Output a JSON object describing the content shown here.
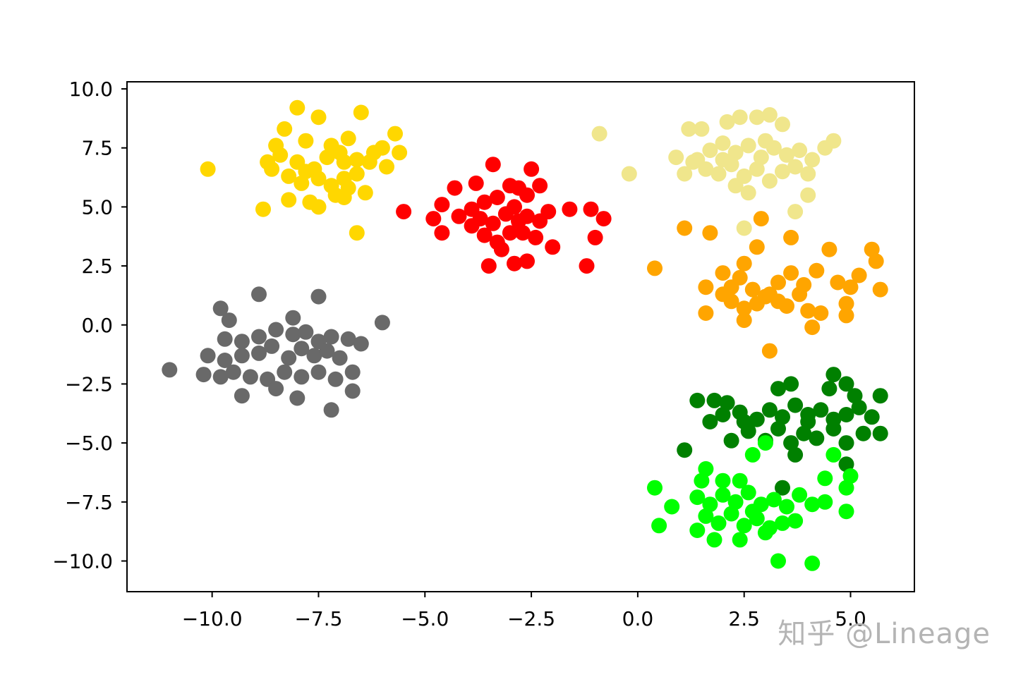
{
  "watermark": "知乎 @Lineage",
  "chart_data": {
    "type": "scatter",
    "title": "",
    "xlabel": "",
    "ylabel": "",
    "xlim": [
      -12.0,
      6.5
    ],
    "ylim": [
      -11.3,
      10.3
    ],
    "xticks": [
      -10.0,
      -7.5,
      -5.0,
      -2.5,
      0.0,
      2.5,
      5.0
    ],
    "xtick_labels": [
      "−10.0",
      "−7.5",
      "−5.0",
      "−2.5",
      "0.0",
      "2.5",
      "5.0"
    ],
    "yticks": [
      10.0,
      7.5,
      5.0,
      2.5,
      0.0,
      -2.5,
      -5.0,
      -7.5,
      -10.0
    ],
    "ytick_labels": [
      "10.0",
      "7.5",
      "5.0",
      "2.5",
      "0.0",
      "−2.5",
      "−5.0",
      "−7.5",
      "−10.0"
    ],
    "grid": false,
    "legend": "none",
    "series": [
      {
        "color": "#FFD700",
        "points": [
          [
            -10.1,
            6.6
          ],
          [
            -8.8,
            4.9
          ],
          [
            -8.0,
            9.2
          ],
          [
            -7.5,
            8.8
          ],
          [
            -6.5,
            9.0
          ],
          [
            -8.3,
            8.3
          ],
          [
            -7.8,
            7.8
          ],
          [
            -7.2,
            7.6
          ],
          [
            -6.8,
            7.9
          ],
          [
            -6.0,
            7.5
          ],
          [
            -5.7,
            8.1
          ],
          [
            -5.6,
            7.3
          ],
          [
            -8.7,
            6.9
          ],
          [
            -8.4,
            7.2
          ],
          [
            -8.0,
            6.9
          ],
          [
            -7.6,
            6.6
          ],
          [
            -7.3,
            7.1
          ],
          [
            -6.9,
            6.9
          ],
          [
            -6.6,
            7.0
          ],
          [
            -6.3,
            6.9
          ],
          [
            -5.9,
            6.7
          ],
          [
            -8.2,
            6.3
          ],
          [
            -7.9,
            6.0
          ],
          [
            -7.5,
            6.2
          ],
          [
            -7.2,
            5.9
          ],
          [
            -6.9,
            6.2
          ],
          [
            -6.6,
            6.4
          ],
          [
            -8.2,
            5.3
          ],
          [
            -7.7,
            5.2
          ],
          [
            -7.5,
            5.0
          ],
          [
            -7.1,
            5.5
          ],
          [
            -6.9,
            5.4
          ],
          [
            -6.4,
            5.6
          ],
          [
            -6.6,
            3.9
          ],
          [
            -8.5,
            7.6
          ],
          [
            -7.0,
            7.3
          ],
          [
            -6.2,
            7.3
          ],
          [
            -7.8,
            6.5
          ],
          [
            -6.8,
            5.8
          ],
          [
            -8.6,
            6.6
          ]
        ]
      },
      {
        "color": "#FF0000",
        "points": [
          [
            -5.5,
            4.8
          ],
          [
            -4.8,
            4.5
          ],
          [
            -4.6,
            5.1
          ],
          [
            -4.3,
            5.8
          ],
          [
            -4.6,
            3.9
          ],
          [
            -4.2,
            4.6
          ],
          [
            -3.9,
            4.9
          ],
          [
            -3.8,
            6.0
          ],
          [
            -3.4,
            6.8
          ],
          [
            -2.5,
            6.6
          ],
          [
            -3.6,
            5.2
          ],
          [
            -3.3,
            5.4
          ],
          [
            -3.0,
            5.9
          ],
          [
            -2.8,
            5.8
          ],
          [
            -2.6,
            5.5
          ],
          [
            -2.3,
            5.9
          ],
          [
            -3.7,
            4.5
          ],
          [
            -3.4,
            4.3
          ],
          [
            -3.1,
            4.7
          ],
          [
            -2.9,
            5.0
          ],
          [
            -2.6,
            4.6
          ],
          [
            -2.3,
            4.4
          ],
          [
            -2.1,
            4.8
          ],
          [
            -3.6,
            3.8
          ],
          [
            -3.3,
            3.5
          ],
          [
            -3.0,
            3.9
          ],
          [
            -2.7,
            3.9
          ],
          [
            -2.4,
            3.7
          ],
          [
            -3.5,
            2.5
          ],
          [
            -3.2,
            3.2
          ],
          [
            -2.9,
            2.6
          ],
          [
            -2.6,
            2.7
          ],
          [
            -2.0,
            3.3
          ],
          [
            -1.6,
            4.9
          ],
          [
            -1.1,
            4.9
          ],
          [
            -0.8,
            4.5
          ],
          [
            -1.0,
            3.7
          ],
          [
            -1.2,
            2.5
          ],
          [
            -3.9,
            4.2
          ],
          [
            -2.8,
            4.4
          ]
        ]
      },
      {
        "color": "#F0E68C",
        "points": [
          [
            -0.9,
            8.1
          ],
          [
            -0.2,
            6.4
          ],
          [
            1.2,
            8.3
          ],
          [
            1.5,
            8.3
          ],
          [
            2.1,
            8.6
          ],
          [
            2.4,
            8.8
          ],
          [
            2.8,
            8.8
          ],
          [
            3.1,
            8.9
          ],
          [
            3.4,
            8.5
          ],
          [
            4.6,
            7.8
          ],
          [
            0.9,
            7.1
          ],
          [
            1.1,
            6.4
          ],
          [
            1.4,
            7.0
          ],
          [
            1.7,
            7.4
          ],
          [
            2.0,
            7.7
          ],
          [
            2.3,
            7.3
          ],
          [
            2.6,
            7.6
          ],
          [
            2.9,
            7.1
          ],
          [
            3.2,
            7.5
          ],
          [
            3.5,
            7.2
          ],
          [
            3.8,
            7.4
          ],
          [
            4.1,
            7.0
          ],
          [
            4.4,
            7.5
          ],
          [
            1.6,
            6.6
          ],
          [
            1.9,
            6.4
          ],
          [
            2.2,
            6.8
          ],
          [
            2.5,
            6.3
          ],
          [
            2.8,
            6.6
          ],
          [
            3.1,
            6.1
          ],
          [
            3.4,
            6.5
          ],
          [
            3.7,
            6.7
          ],
          [
            4.0,
            6.4
          ],
          [
            2.3,
            5.9
          ],
          [
            2.6,
            5.6
          ],
          [
            4.0,
            5.5
          ],
          [
            3.7,
            4.8
          ],
          [
            2.5,
            4.1
          ],
          [
            1.3,
            6.9
          ],
          [
            2.0,
            7.0
          ],
          [
            3.0,
            7.8
          ]
        ]
      },
      {
        "color": "#FFA500",
        "points": [
          [
            0.4,
            2.4
          ],
          [
            1.1,
            4.1
          ],
          [
            1.7,
            3.9
          ],
          [
            2.9,
            4.5
          ],
          [
            3.6,
            3.7
          ],
          [
            1.6,
            1.6
          ],
          [
            1.6,
            0.5
          ],
          [
            2.0,
            2.2
          ],
          [
            2.2,
            1.6
          ],
          [
            2.5,
            2.6
          ],
          [
            2.8,
            3.3
          ],
          [
            2.4,
            2.0
          ],
          [
            2.7,
            1.5
          ],
          [
            3.0,
            1.2
          ],
          [
            3.3,
            1.8
          ],
          [
            3.6,
            2.2
          ],
          [
            3.9,
            1.7
          ],
          [
            4.2,
            2.3
          ],
          [
            4.5,
            3.2
          ],
          [
            4.7,
            1.8
          ],
          [
            2.2,
            1.0
          ],
          [
            2.5,
            0.7
          ],
          [
            2.8,
            0.9
          ],
          [
            3.1,
            1.3
          ],
          [
            3.5,
            0.8
          ],
          [
            3.8,
            1.3
          ],
          [
            4.0,
            0.6
          ],
          [
            4.3,
            0.5
          ],
          [
            4.9,
            0.9
          ],
          [
            5.0,
            1.6
          ],
          [
            5.2,
            2.1
          ],
          [
            5.5,
            3.2
          ],
          [
            5.7,
            1.5
          ],
          [
            4.1,
            -0.1
          ],
          [
            3.1,
            -1.1
          ],
          [
            2.5,
            0.2
          ],
          [
            4.9,
            0.4
          ],
          [
            5.6,
            2.7
          ],
          [
            3.3,
            1.0
          ],
          [
            2.0,
            1.3
          ]
        ]
      },
      {
        "color": "#696969",
        "points": [
          [
            -11.0,
            -1.9
          ],
          [
            -10.2,
            -2.1
          ],
          [
            -9.8,
            0.7
          ],
          [
            -9.6,
            0.2
          ],
          [
            -8.9,
            1.3
          ],
          [
            -7.5,
            1.2
          ],
          [
            -6.0,
            0.1
          ],
          [
            -9.7,
            -0.6
          ],
          [
            -9.3,
            -0.7
          ],
          [
            -8.9,
            -0.5
          ],
          [
            -8.5,
            -0.2
          ],
          [
            -8.1,
            -0.4
          ],
          [
            -7.8,
            -0.3
          ],
          [
            -7.5,
            -0.7
          ],
          [
            -7.2,
            -0.5
          ],
          [
            -6.8,
            -0.6
          ],
          [
            -6.5,
            -0.8
          ],
          [
            -10.1,
            -1.3
          ],
          [
            -9.7,
            -1.5
          ],
          [
            -9.3,
            -1.3
          ],
          [
            -8.9,
            -1.2
          ],
          [
            -8.6,
            -0.9
          ],
          [
            -8.2,
            -1.4
          ],
          [
            -7.9,
            -1.0
          ],
          [
            -7.6,
            -1.3
          ],
          [
            -7.3,
            -1.1
          ],
          [
            -7.0,
            -1.4
          ],
          [
            -9.5,
            -2.0
          ],
          [
            -9.1,
            -2.2
          ],
          [
            -8.7,
            -2.3
          ],
          [
            -8.3,
            -2.0
          ],
          [
            -7.9,
            -2.2
          ],
          [
            -7.5,
            -2.0
          ],
          [
            -7.1,
            -2.3
          ],
          [
            -6.7,
            -2.0
          ],
          [
            -9.3,
            -3.0
          ],
          [
            -8.5,
            -2.7
          ],
          [
            -8.0,
            -3.1
          ],
          [
            -7.2,
            -3.6
          ],
          [
            -6.7,
            -2.8
          ],
          [
            -8.1,
            0.3
          ],
          [
            -9.8,
            -2.2
          ]
        ]
      },
      {
        "color": "#008000",
        "points": [
          [
            1.4,
            -3.2
          ],
          [
            1.8,
            -3.2
          ],
          [
            2.1,
            -3.3
          ],
          [
            3.3,
            -2.7
          ],
          [
            3.6,
            -2.5
          ],
          [
            4.5,
            -2.7
          ],
          [
            4.6,
            -2.1
          ],
          [
            4.9,
            -2.5
          ],
          [
            5.1,
            -3.0
          ],
          [
            5.7,
            -3.0
          ],
          [
            1.7,
            -4.1
          ],
          [
            2.0,
            -3.8
          ],
          [
            2.4,
            -3.7
          ],
          [
            2.8,
            -4.0
          ],
          [
            3.1,
            -3.6
          ],
          [
            3.4,
            -3.9
          ],
          [
            3.7,
            -3.4
          ],
          [
            4.0,
            -3.8
          ],
          [
            4.3,
            -3.6
          ],
          [
            4.6,
            -4.0
          ],
          [
            4.9,
            -3.8
          ],
          [
            5.2,
            -3.5
          ],
          [
            5.5,
            -3.9
          ],
          [
            2.2,
            -4.9
          ],
          [
            2.6,
            -4.5
          ],
          [
            3.0,
            -4.9
          ],
          [
            3.3,
            -4.4
          ],
          [
            3.6,
            -5.0
          ],
          [
            3.9,
            -4.6
          ],
          [
            4.2,
            -4.8
          ],
          [
            4.6,
            -4.4
          ],
          [
            4.9,
            -5.0
          ],
          [
            5.3,
            -4.6
          ],
          [
            5.7,
            -4.6
          ],
          [
            1.1,
            -5.3
          ],
          [
            3.7,
            -5.5
          ],
          [
            4.9,
            -5.9
          ],
          [
            3.4,
            -6.9
          ],
          [
            2.5,
            -4.1
          ],
          [
            4.0,
            -4.1
          ]
        ]
      },
      {
        "color": "#00FF00",
        "points": [
          [
            0.4,
            -6.9
          ],
          [
            0.8,
            -7.7
          ],
          [
            1.5,
            -6.6
          ],
          [
            1.6,
            -6.1
          ],
          [
            2.0,
            -6.6
          ],
          [
            2.4,
            -6.6
          ],
          [
            3.0,
            -5.0
          ],
          [
            2.7,
            -5.5
          ],
          [
            4.6,
            -5.5
          ],
          [
            5.0,
            -6.4
          ],
          [
            4.4,
            -6.5
          ],
          [
            1.4,
            -7.3
          ],
          [
            1.7,
            -7.6
          ],
          [
            2.0,
            -7.2
          ],
          [
            2.3,
            -7.5
          ],
          [
            2.6,
            -7.1
          ],
          [
            2.9,
            -7.6
          ],
          [
            3.2,
            -7.4
          ],
          [
            3.5,
            -7.7
          ],
          [
            3.8,
            -7.2
          ],
          [
            4.1,
            -7.6
          ],
          [
            4.4,
            -7.5
          ],
          [
            1.6,
            -8.1
          ],
          [
            1.9,
            -8.4
          ],
          [
            2.2,
            -8.0
          ],
          [
            2.5,
            -8.5
          ],
          [
            2.8,
            -8.2
          ],
          [
            3.1,
            -8.6
          ],
          [
            3.4,
            -8.4
          ],
          [
            3.7,
            -8.3
          ],
          [
            0.5,
            -8.5
          ],
          [
            1.4,
            -8.7
          ],
          [
            1.8,
            -9.1
          ],
          [
            2.4,
            -9.1
          ],
          [
            3.0,
            -8.8
          ],
          [
            3.3,
            -10.0
          ],
          [
            4.1,
            -10.1
          ],
          [
            4.9,
            -7.9
          ],
          [
            4.9,
            -6.9
          ],
          [
            2.7,
            -7.9
          ]
        ]
      }
    ]
  }
}
